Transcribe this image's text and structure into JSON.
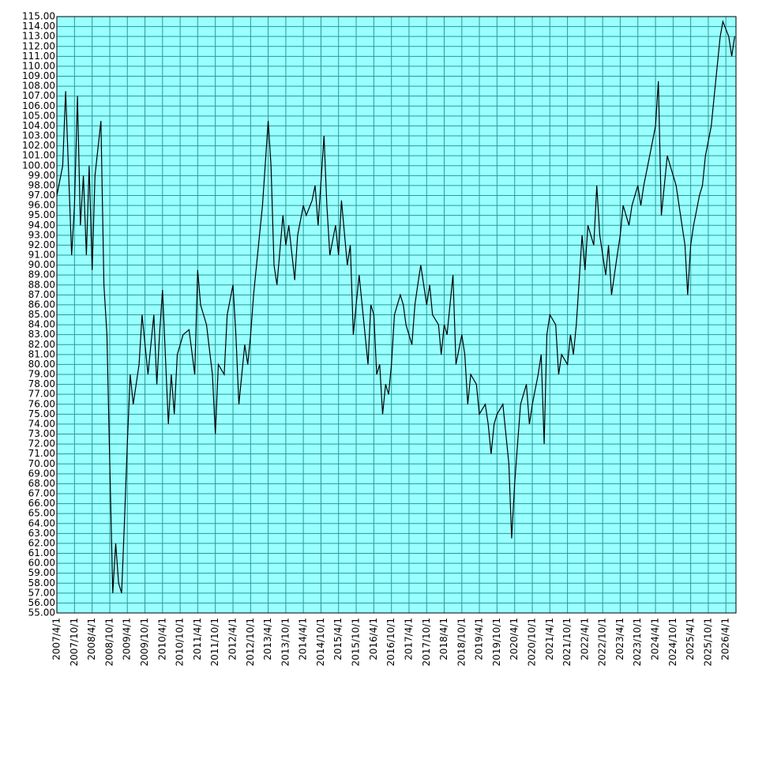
{
  "chart_data": {
    "type": "line",
    "x": [
      "2007/4/1",
      "2007/6/1",
      "2007/7/1",
      "2007/9/1",
      "2007/10/1",
      "2007/11/1",
      "2007/12/1",
      "2008/1/1",
      "2008/2/1",
      "2008/3/1",
      "2008/4/1",
      "2008/5/1",
      "2008/7/1",
      "2008/8/1",
      "2008/9/1",
      "2008/10/1",
      "2008/11/1",
      "2008/12/1",
      "2009/1/1",
      "2009/2/1",
      "2009/3/1",
      "2009/4/1",
      "2009/5/1",
      "2009/6/1",
      "2009/8/1",
      "2009/9/1",
      "2009/11/1",
      "2010/1/1",
      "2010/2/1",
      "2010/3/1",
      "2010/4/1",
      "2010/6/1",
      "2010/7/1",
      "2010/8/1",
      "2010/9/1",
      "2010/11/1",
      "2011/1/1",
      "2011/3/1",
      "2011/4/1",
      "2011/5/1",
      "2011/7/1",
      "2011/9/1",
      "2011/10/1",
      "2011/11/1",
      "2012/1/1",
      "2012/2/1",
      "2012/4/1",
      "2012/5/1",
      "2012/6/1",
      "2012/8/1",
      "2012/9/1",
      "2012/10/1",
      "2012/11/1",
      "2013/1/1",
      "2013/2/1",
      "2013/4/1",
      "2013/5/1",
      "2013/6/1",
      "2013/7/1",
      "2013/9/1",
      "2013/10/1",
      "2013/11/1",
      "2014/1/1",
      "2014/2/1",
      "2014/4/1",
      "2014/5/1",
      "2014/7/1",
      "2014/8/1",
      "2014/9/1",
      "2014/11/1",
      "2014/12/1",
      "2015/1/1",
      "2015/3/1",
      "2015/4/1",
      "2015/5/1",
      "2015/7/1",
      "2015/8/1",
      "2015/9/1",
      "2015/10/1",
      "2015/11/1",
      "2016/1/1",
      "2016/2/1",
      "2016/3/1",
      "2016/4/1",
      "2016/5/1",
      "2016/6/1",
      "2016/7/1",
      "2016/8/1",
      "2016/9/1",
      "2016/10/1",
      "2016/11/1",
      "2017/1/1",
      "2017/2/1",
      "2017/3/1",
      "2017/5/1",
      "2017/6/1",
      "2017/7/1",
      "2017/8/1",
      "2017/10/1",
      "2017/11/1",
      "2017/12/1",
      "2018/2/1",
      "2018/3/1",
      "2018/4/1",
      "2018/5/1",
      "2018/7/1",
      "2018/8/1",
      "2018/10/1",
      "2018/11/1",
      "2018/12/1",
      "2019/1/1",
      "2019/3/1",
      "2019/4/1",
      "2019/6/1",
      "2019/7/1",
      "2019/8/1",
      "2019/9/1",
      "2019/10/1",
      "2019/12/1",
      "2020/1/1",
      "2020/2/1",
      "2020/3/1",
      "2020/4/1",
      "2020/5/1",
      "2020/6/1",
      "2020/8/1",
      "2020/9/1",
      "2020/10/1",
      "2020/12/1",
      "2021/1/1",
      "2021/2/1",
      "2021/3/1",
      "2021/4/1",
      "2021/6/1",
      "2021/7/1",
      "2021/8/1",
      "2021/10/1",
      "2021/11/1",
      "2021/12/1",
      "2022/1/1",
      "2022/3/1",
      "2022/4/1",
      "2022/5/1",
      "2022/7/1",
      "2022/8/1",
      "2022/9/1",
      "2022/11/1",
      "2022/12/1",
      "2023/1/1",
      "2023/3/1",
      "2023/4/1",
      "2023/5/1",
      "2023/7/1",
      "2023/8/1",
      "2023/10/1",
      "2023/11/1",
      "2023/12/1",
      "2024/2/1",
      "2024/4/1",
      "2024/5/1",
      "2024/6/1",
      "2024/8/1",
      "2024/9/1",
      "2024/11/1",
      "2024/12/1",
      "2025/2/1",
      "2025/3/1",
      "2025/4/1",
      "2025/5/1",
      "2025/7/1",
      "2025/8/1",
      "2025/9/1",
      "2025/11/1",
      "2025/12/1",
      "2026/1/1",
      "2026/2/1",
      "2026/3/1",
      "2026/5/1",
      "2026/6/1",
      "2026/7/1"
    ],
    "values": [
      97,
      100,
      107.5,
      91,
      96,
      107,
      94,
      99,
      91,
      100,
      89.5,
      99,
      104.5,
      88,
      83,
      70,
      57,
      62,
      58,
      57,
      64,
      72,
      79,
      76,
      80,
      85,
      79,
      85,
      78,
      83,
      87.5,
      74,
      79,
      75,
      81,
      83,
      83.5,
      79,
      89.5,
      86,
      84,
      79,
      73,
      80,
      79,
      85,
      88,
      83,
      76,
      82,
      80,
      83,
      87,
      93,
      96,
      104.5,
      100,
      90,
      88,
      95,
      92,
      94,
      88.5,
      93,
      96,
      95,
      96.5,
      98,
      94,
      103,
      96,
      91,
      94,
      91,
      96.5,
      90,
      92,
      83,
      86,
      89,
      83,
      80,
      86,
      85,
      79,
      80,
      75,
      78,
      77,
      80,
      85,
      87,
      86,
      84,
      82,
      86,
      88,
      90,
      86,
      88,
      85,
      84,
      81,
      84,
      83,
      89,
      80,
      83,
      81,
      76,
      79,
      78,
      75,
      76,
      74,
      71,
      74,
      75,
      76,
      73,
      70,
      62.5,
      68,
      72,
      76,
      78,
      74,
      76,
      79,
      81,
      72,
      83,
      85,
      84,
      79,
      81,
      80,
      83,
      81,
      84,
      93,
      89.5,
      94,
      92,
      98,
      93,
      89,
      92,
      87,
      91,
      93,
      96,
      94,
      96,
      98,
      96,
      98,
      101,
      104,
      108.5,
      95,
      101,
      100,
      98,
      96,
      92,
      87,
      92,
      94,
      97,
      98,
      101,
      104,
      107,
      110,
      113,
      114.5,
      113,
      111,
      113
    ],
    "color": "#000000",
    "xlim": [
      "2007/4/1",
      "2026/7/15"
    ],
    "xticks": [
      "2007/4/1",
      "2007/10/1",
      "2008/4/1",
      "2008/10/1",
      "2009/4/1",
      "2009/10/1",
      "2010/4/1",
      "2010/10/1",
      "2011/4/1",
      "2011/10/1",
      "2012/4/1",
      "2012/10/1",
      "2013/4/1",
      "2013/10/1",
      "2014/4/1",
      "2014/10/1",
      "2015/4/1",
      "2015/10/1",
      "2016/4/1",
      "2016/10/1",
      "2017/4/1",
      "2017/10/1",
      "2018/4/1",
      "2018/10/1",
      "2019/4/1",
      "2019/10/1",
      "2020/4/1",
      "2020/10/1",
      "2021/4/1",
      "2021/10/1",
      "2022/4/1",
      "2022/10/1",
      "2023/4/1",
      "2023/10/1",
      "2024/4/1",
      "2024/10/1",
      "2025/4/1",
      "2025/10/1",
      "2026/4/1"
    ],
    "ylim": [
      55,
      115
    ],
    "yticks": [
      {
        "value": 55,
        "label": "55.00"
      },
      {
        "value": 56,
        "label": "56.00"
      },
      {
        "value": 57,
        "label": "57.00"
      },
      {
        "value": 58,
        "label": "58.00"
      },
      {
        "value": 59,
        "label": "59.00"
      },
      {
        "value": 60,
        "label": "60.00"
      },
      {
        "value": 61,
        "label": "61.00"
      },
      {
        "value": 62,
        "label": "62.00"
      },
      {
        "value": 63,
        "label": "63.00"
      },
      {
        "value": 64,
        "label": "64.00"
      },
      {
        "value": 65,
        "label": "65.00"
      },
      {
        "value": 66,
        "label": "66.00"
      },
      {
        "value": 67,
        "label": "67.00"
      },
      {
        "value": 68,
        "label": "68.00"
      },
      {
        "value": 69,
        "label": "69.00"
      },
      {
        "value": 70,
        "label": "70.00"
      },
      {
        "value": 71,
        "label": "71.00"
      },
      {
        "value": 72,
        "label": "72.00"
      },
      {
        "value": 73,
        "label": "73.00"
      },
      {
        "value": 74,
        "label": "74.00"
      },
      {
        "value": 75,
        "label": "75.00"
      },
      {
        "value": 76,
        "label": "76.00"
      },
      {
        "value": 77,
        "label": "77.00"
      },
      {
        "value": 78,
        "label": "78.00"
      },
      {
        "value": 79,
        "label": "79.00"
      },
      {
        "value": 80,
        "label": "80.00"
      },
      {
        "value": 81,
        "label": "81.00"
      },
      {
        "value": 82,
        "label": "82.00"
      },
      {
        "value": 83,
        "label": "83.00"
      },
      {
        "value": 84,
        "label": "84.00"
      },
      {
        "value": 85,
        "label": "85.00"
      },
      {
        "value": 86,
        "label": "86.00"
      },
      {
        "value": 87,
        "label": "87.00"
      },
      {
        "value": 88,
        "label": "88.00"
      },
      {
        "value": 89,
        "label": "89.00"
      },
      {
        "value": 90,
        "label": "90.00"
      },
      {
        "value": 91,
        "label": "91.00"
      },
      {
        "value": 92,
        "label": "92.00"
      },
      {
        "value": 93,
        "label": "93.00"
      },
      {
        "value": 94,
        "label": "94.00"
      },
      {
        "value": 95,
        "label": "95.00"
      },
      {
        "value": 96,
        "label": "96.00"
      },
      {
        "value": 97,
        "label": "97.00"
      },
      {
        "value": 98,
        "label": "98.00"
      },
      {
        "value": 99,
        "label": "99.00"
      },
      {
        "value": 100,
        "label": "100.00"
      },
      {
        "value": 101,
        "label": "101.00"
      },
      {
        "value": 102,
        "label": "102.00"
      },
      {
        "value": 103,
        "label": "103.00"
      },
      {
        "value": 104,
        "label": "104.00"
      },
      {
        "value": 105,
        "label": "105.00"
      },
      {
        "value": 106,
        "label": "106.00"
      },
      {
        "value": 107,
        "label": "107.00"
      },
      {
        "value": 108,
        "label": "108.00"
      },
      {
        "value": 109,
        "label": "109.00"
      },
      {
        "value": 110,
        "label": "110.00"
      },
      {
        "value": 111,
        "label": "111.00"
      },
      {
        "value": 112,
        "label": "112.00"
      },
      {
        "value": 113,
        "label": "113.00"
      },
      {
        "value": 114,
        "label": "114.00"
      },
      {
        "value": 115,
        "label": "115.00"
      }
    ],
    "grid": true
  }
}
